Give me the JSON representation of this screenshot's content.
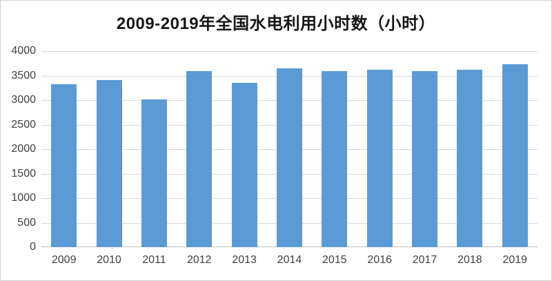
{
  "chart_data": {
    "type": "bar",
    "title": "2009-2019年全国水电利用小时数（小时）",
    "categories": [
      "2009",
      "2010",
      "2011",
      "2012",
      "2013",
      "2014",
      "2015",
      "2016",
      "2017",
      "2018",
      "2019"
    ],
    "values": [
      3328,
      3404,
      3019,
      3591,
      3359,
      3653,
      3590,
      3621,
      3597,
      3613,
      3726
    ],
    "xlabel": "",
    "ylabel": "",
    "ylim": [
      0,
      4000
    ],
    "ytick_step": 500,
    "yticks": [
      "0",
      "500",
      "1000",
      "1500",
      "2000",
      "2500",
      "3000",
      "3500",
      "4000"
    ],
    "grid": true,
    "legend": "none",
    "colors": {
      "bar": "#5B9BD5",
      "gridline": "#D9D9D9",
      "axis_line": "#BFBFBF",
      "tick_label": "#404040",
      "title": "#161616",
      "background": "#FFFFFF",
      "border": "#D0D0D0"
    }
  }
}
